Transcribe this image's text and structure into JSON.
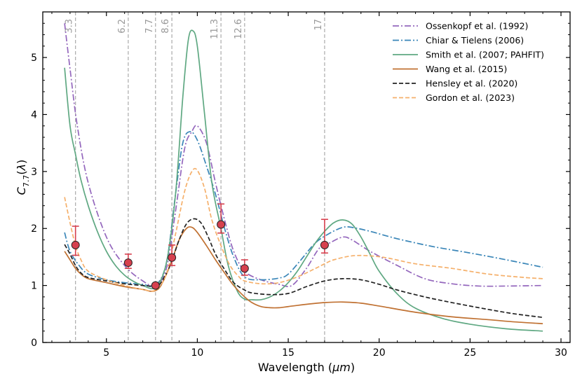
{
  "chart_data": {
    "type": "line",
    "xlabel": "Wavelength (μm)",
    "xlabel_prefix": "Wavelength (",
    "xlabel_unit": "μm",
    "xlabel_suffix": ")",
    "ylabel": "C7.7(λ)",
    "xlim": [
      1.5,
      30.5
    ],
    "ylim": [
      0,
      5.8
    ],
    "xticks": [
      5,
      10,
      15,
      20,
      25,
      30
    ],
    "yticks": [
      0,
      1,
      2,
      3,
      4,
      5
    ],
    "reference_lines": [
      {
        "x": 3.3,
        "label": "3.3"
      },
      {
        "x": 6.2,
        "label": "6.2"
      },
      {
        "x": 7.7,
        "label": "7.7"
      },
      {
        "x": 8.6,
        "label": "8.6"
      },
      {
        "x": 11.3,
        "label": "11.3"
      },
      {
        "x": 12.6,
        "label": "12.6"
      },
      {
        "x": 17,
        "label": "17"
      }
    ],
    "series": [
      {
        "name": "Ossenkopf et al. (1992)",
        "color": "#9467bd",
        "dash": "dashdot",
        "x": [
          2.7,
          3.0,
          3.4,
          4.0,
          5.0,
          6.0,
          7.0,
          7.7,
          8.3,
          8.8,
          9.3,
          9.7,
          10.0,
          10.5,
          11.0,
          11.5,
          12.0,
          12.6,
          13.5,
          14.5,
          15.2,
          16.0,
          16.7,
          17.3,
          18.0,
          18.5,
          19.5,
          21.0,
          22.5,
          24.0,
          25.5,
          27.0,
          29.0
        ],
        "y": [
          5.6,
          4.8,
          3.8,
          2.8,
          1.85,
          1.35,
          1.08,
          1.0,
          1.3,
          2.3,
          3.4,
          3.7,
          3.8,
          3.5,
          2.8,
          2.15,
          1.6,
          1.25,
          1.1,
          1.02,
          1.0,
          1.3,
          1.65,
          1.75,
          1.85,
          1.8,
          1.6,
          1.35,
          1.12,
          1.03,
          0.99,
          0.99,
          1.0
        ]
      },
      {
        "name": "Chiar & Tielens (2006)",
        "color": "#3a86b8",
        "dash": "dashdot",
        "x": [
          2.7,
          3.0,
          3.5,
          4.0,
          5.0,
          6.0,
          7.0,
          7.7,
          8.3,
          8.8,
          9.2,
          9.6,
          10.0,
          10.5,
          11.0,
          11.5,
          12.0,
          12.6,
          13.5,
          14.5,
          15.0,
          15.7,
          16.5,
          17.3,
          18.0,
          18.5,
          19.5,
          21.0,
          23.0,
          25.0,
          27.0,
          29.0
        ],
        "y": [
          1.93,
          1.6,
          1.35,
          1.2,
          1.1,
          1.05,
          1.02,
          1.0,
          1.4,
          2.6,
          3.5,
          3.7,
          3.55,
          3.1,
          2.6,
          2.0,
          1.5,
          1.15,
          1.1,
          1.13,
          1.2,
          1.45,
          1.75,
          1.92,
          2.02,
          2.02,
          1.95,
          1.82,
          1.68,
          1.57,
          1.45,
          1.32
        ]
      },
      {
        "name": "Smith et al. (2007; PAHFIT)",
        "color": "#5fa882",
        "dash": "solid",
        "x": [
          2.7,
          3.0,
          3.3,
          3.6,
          4.0,
          4.5,
          5.0,
          5.5,
          6.0,
          6.5,
          7.0,
          7.7,
          8.3,
          8.8,
          9.2,
          9.5,
          9.75,
          10.0,
          10.4,
          10.8,
          11.3,
          11.7,
          12.2,
          12.6,
          13.0,
          13.5,
          14.0,
          14.5,
          15.0,
          15.5,
          16.0,
          16.5,
          17.0,
          17.5,
          18.0,
          18.5,
          19.0,
          19.5,
          20.0,
          21.0,
          22.0,
          23.5,
          25.0,
          27.0,
          29.0
        ],
        "y": [
          4.82,
          3.8,
          3.3,
          2.85,
          2.4,
          1.95,
          1.6,
          1.35,
          1.18,
          1.07,
          1.0,
          0.97,
          1.4,
          2.6,
          4.3,
          5.3,
          5.47,
          5.2,
          4.0,
          2.8,
          2.0,
          1.35,
          0.9,
          0.76,
          0.75,
          0.75,
          0.8,
          0.9,
          1.05,
          1.25,
          1.5,
          1.75,
          1.95,
          2.1,
          2.15,
          2.08,
          1.85,
          1.55,
          1.25,
          0.85,
          0.6,
          0.42,
          0.32,
          0.24,
          0.2
        ]
      },
      {
        "name": "Wang et al. (2015)",
        "color": "#c07132",
        "dash": "solid",
        "x": [
          2.7,
          3.0,
          3.3,
          3.6,
          4.0,
          5.0,
          6.0,
          7.0,
          7.4,
          7.7,
          8.0,
          8.5,
          9.0,
          9.4,
          9.7,
          10.0,
          10.5,
          11.0,
          11.5,
          12.0,
          12.6,
          13.0,
          13.5,
          14.0,
          14.5,
          15.0,
          16.0,
          17.0,
          18.0,
          19.0,
          20.0,
          22.0,
          24.0,
          26.0,
          27.5,
          29.0
        ],
        "y": [
          1.6,
          1.45,
          1.3,
          1.2,
          1.12,
          1.05,
          0.98,
          0.93,
          0.9,
          0.91,
          1.0,
          1.35,
          1.8,
          2.0,
          2.02,
          1.93,
          1.7,
          1.45,
          1.22,
          1.0,
          0.8,
          0.7,
          0.63,
          0.61,
          0.61,
          0.63,
          0.67,
          0.7,
          0.71,
          0.69,
          0.64,
          0.53,
          0.45,
          0.4,
          0.36,
          0.33
        ]
      },
      {
        "name": "Hensley et al. (2020)",
        "color": "#222222",
        "dash": "dashed",
        "x": [
          2.7,
          3.0,
          3.3,
          3.6,
          4.0,
          5.0,
          6.0,
          7.0,
          7.7,
          8.0,
          8.5,
          9.0,
          9.4,
          9.8,
          10.2,
          10.6,
          11.0,
          11.5,
          12.0,
          12.6,
          13.0,
          14.0,
          15.0,
          16.0,
          17.0,
          18.0,
          19.0,
          20.0,
          21.0,
          22.5,
          24.0,
          26.0,
          27.5,
          29.0
        ],
        "y": [
          1.72,
          1.55,
          1.35,
          1.22,
          1.14,
          1.08,
          1.03,
          1.0,
          0.99,
          1.05,
          1.35,
          1.8,
          2.08,
          2.17,
          2.1,
          1.85,
          1.55,
          1.28,
          1.05,
          0.92,
          0.87,
          0.84,
          0.86,
          0.98,
          1.08,
          1.12,
          1.1,
          1.02,
          0.92,
          0.8,
          0.7,
          0.58,
          0.5,
          0.44
        ]
      },
      {
        "name": "Gordon et al. (2023)",
        "color": "#f5b06b",
        "dash": "dashed",
        "x": [
          2.7,
          3.0,
          3.3,
          3.6,
          4.0,
          5.0,
          6.0,
          7.0,
          7.7,
          8.3,
          8.8,
          9.3,
          9.7,
          10.0,
          10.4,
          10.8,
          11.3,
          11.8,
          12.3,
          12.6,
          13.5,
          14.5,
          15.5,
          16.5,
          17.0,
          17.5,
          18.5,
          19.5,
          20.5,
          22.0,
          24.0,
          26.0,
          28.0,
          29.0
        ],
        "y": [
          2.55,
          2.1,
          1.7,
          1.45,
          1.25,
          1.1,
          1.0,
          0.93,
          0.92,
          1.2,
          1.9,
          2.65,
          3.0,
          3.02,
          2.7,
          2.15,
          1.7,
          1.35,
          1.15,
          1.08,
          1.03,
          1.05,
          1.15,
          1.3,
          1.38,
          1.45,
          1.52,
          1.52,
          1.48,
          1.38,
          1.3,
          1.2,
          1.14,
          1.12
        ]
      }
    ],
    "points": {
      "color": "#d6404e",
      "x": [
        3.3,
        6.2,
        7.7,
        8.6,
        11.3,
        12.6,
        17.0
      ],
      "y": [
        1.71,
        1.4,
        1.0,
        1.49,
        2.07,
        1.3,
        1.71
      ],
      "err_low": [
        0.18,
        0.1,
        0.03,
        0.14,
        0.15,
        0.12,
        0.14
      ],
      "err_high": [
        0.33,
        0.15,
        0.03,
        0.22,
        0.36,
        0.15,
        0.45
      ]
    }
  }
}
